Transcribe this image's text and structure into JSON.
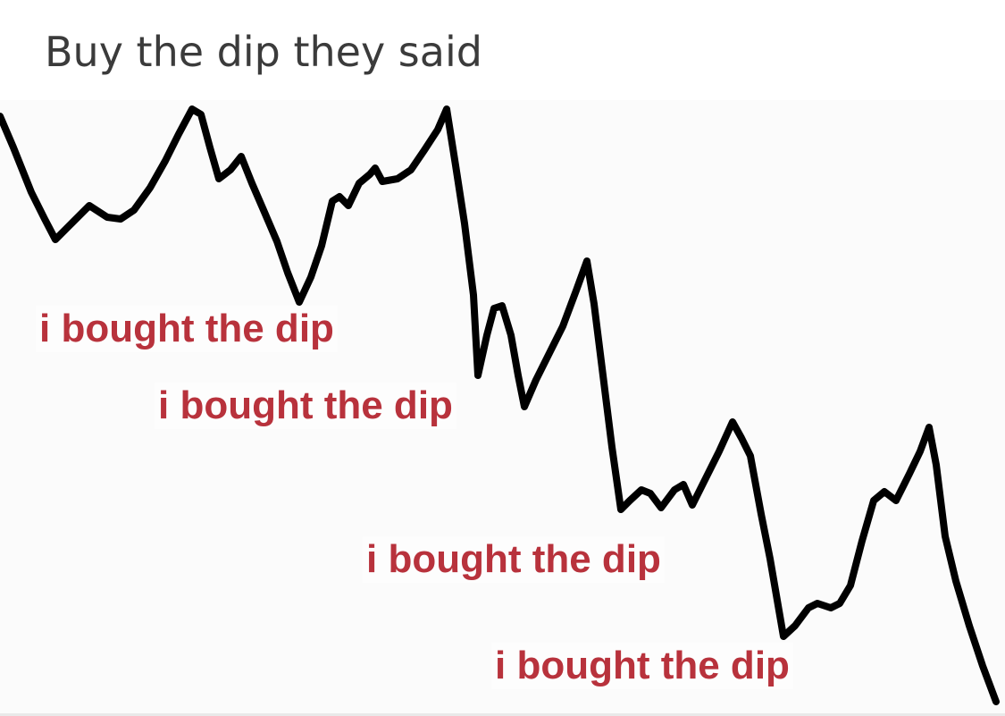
{
  "post": {
    "title": "Buy the dip they said"
  },
  "meme": {
    "captions": [
      "i bought the dip",
      "i bought the dip",
      "i bought the dip",
      "i bought the dip"
    ],
    "caption_color": "#b8323c",
    "line_color": "#000000",
    "title_color": "#3b3b3b"
  }
}
